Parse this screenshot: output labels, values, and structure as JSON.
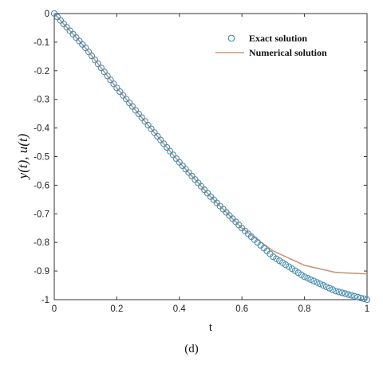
{
  "chart_data": {
    "type": "line",
    "xlabel": "t",
    "ylabel": "y(t), u(t)",
    "xlim": [
      0,
      1
    ],
    "ylim": [
      -1,
      0
    ],
    "xticks": [
      "0",
      "0.2",
      "0.4",
      "0.6",
      "0.8",
      "1"
    ],
    "yticks": [
      "0",
      "-0.1",
      "-0.2",
      "-0.3",
      "-0.4",
      "-0.5",
      "-0.6",
      "-0.7",
      "-0.8",
      "-0.9",
      "-1"
    ],
    "legend_position": "top-right",
    "grid": false,
    "series": [
      {
        "name": "Exact solution",
        "style": "circle-markers",
        "color": "#4a8fb0",
        "x": [
          0,
          0.1,
          0.2,
          0.3,
          0.4,
          0.5,
          0.6,
          0.7,
          0.8,
          0.9,
          1.0
        ],
        "y": [
          0,
          -0.12,
          -0.26,
          -0.39,
          -0.52,
          -0.64,
          -0.75,
          -0.85,
          -0.92,
          -0.97,
          -1.0
        ]
      },
      {
        "name": "Numerical solution",
        "style": "line",
        "color": "#c9967c",
        "x": [
          0,
          0.1,
          0.2,
          0.3,
          0.4,
          0.5,
          0.6,
          0.7,
          0.8,
          0.9,
          1.0
        ],
        "y": [
          0,
          -0.12,
          -0.26,
          -0.39,
          -0.52,
          -0.64,
          -0.75,
          -0.83,
          -0.88,
          -0.905,
          -0.91
        ]
      }
    ]
  },
  "caption": "(d)"
}
